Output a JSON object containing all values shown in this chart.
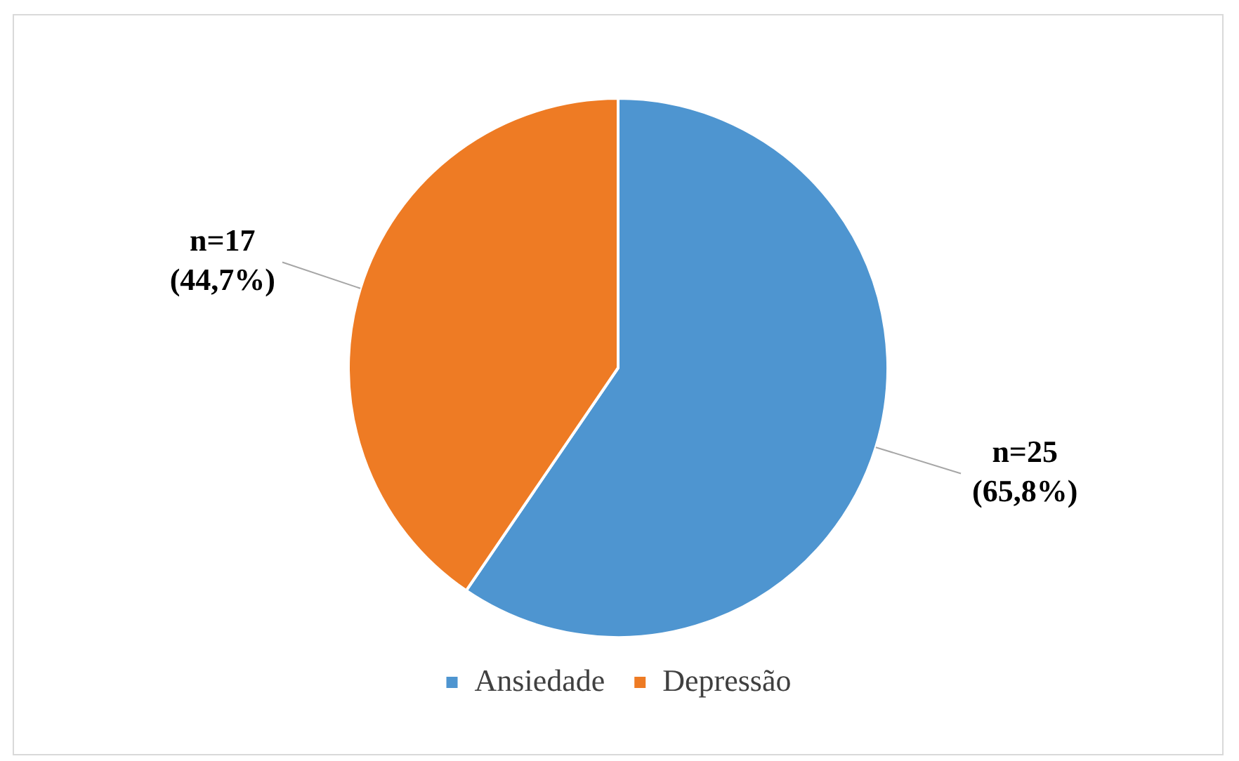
{
  "chart_data": {
    "type": "pie",
    "categories": [
      "Ansiedade",
      "Depressão"
    ],
    "values": [
      25,
      17
    ],
    "colors": [
      "#4e95d0",
      "#ee7b24"
    ],
    "value_labels": [
      "n=25\n(65,8%)",
      "n=17\n(44,7%)"
    ],
    "legend": "bottom"
  }
}
